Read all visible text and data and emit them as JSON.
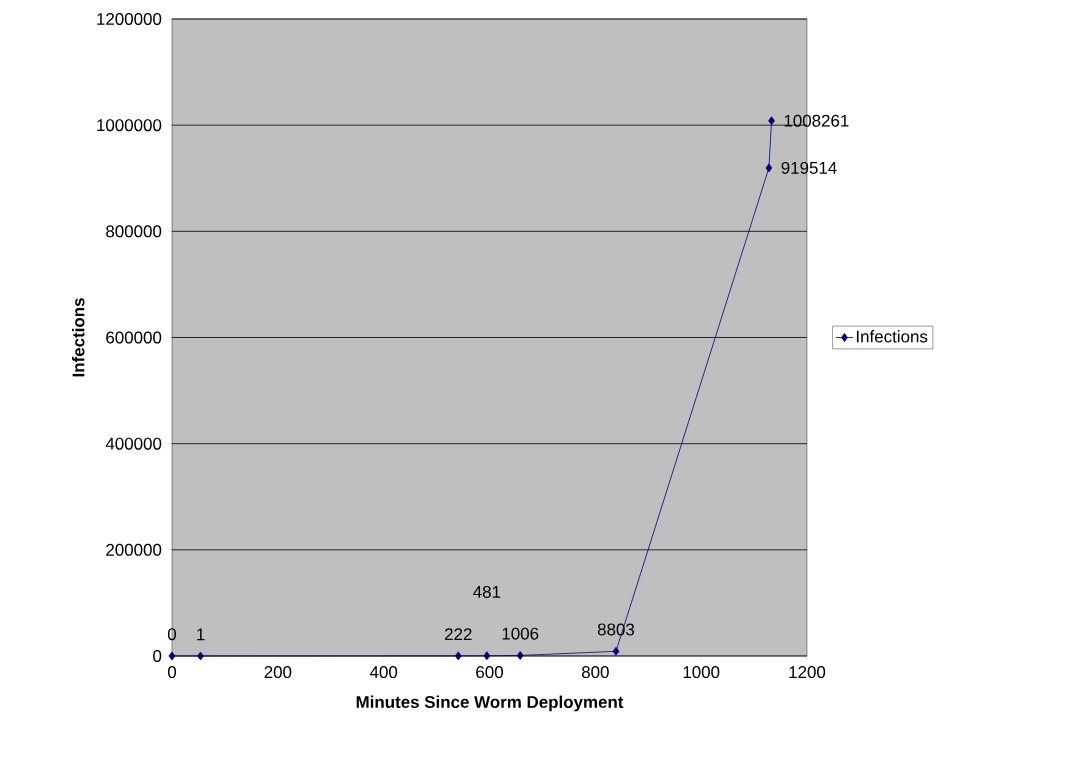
{
  "chart_data": {
    "type": "line",
    "xlabel": "Minutes Since Worm Deployment",
    "ylabel": "Infections",
    "x": [
      0,
      54,
      541,
      595,
      658,
      839,
      1128,
      1133
    ],
    "series": [
      {
        "name": "Infections",
        "color": "#000080",
        "values": [
          0,
          1,
          222,
          481,
          1006,
          8803,
          919514,
          1008261
        ]
      }
    ],
    "value_labels": [
      "0",
      "1",
      "222",
      "481",
      "1006",
      "8803",
      "919514",
      "1008261"
    ],
    "xlim": [
      0,
      1200
    ],
    "xticks": [
      0,
      200,
      400,
      600,
      800,
      1000,
      1200
    ],
    "ylim": [
      0,
      1200000
    ],
    "yticks": [
      0,
      200000,
      400000,
      600000,
      800000,
      1000000,
      1200000
    ],
    "grid": "y",
    "legend": "right",
    "marker": "diamond",
    "line_style": "solid"
  }
}
